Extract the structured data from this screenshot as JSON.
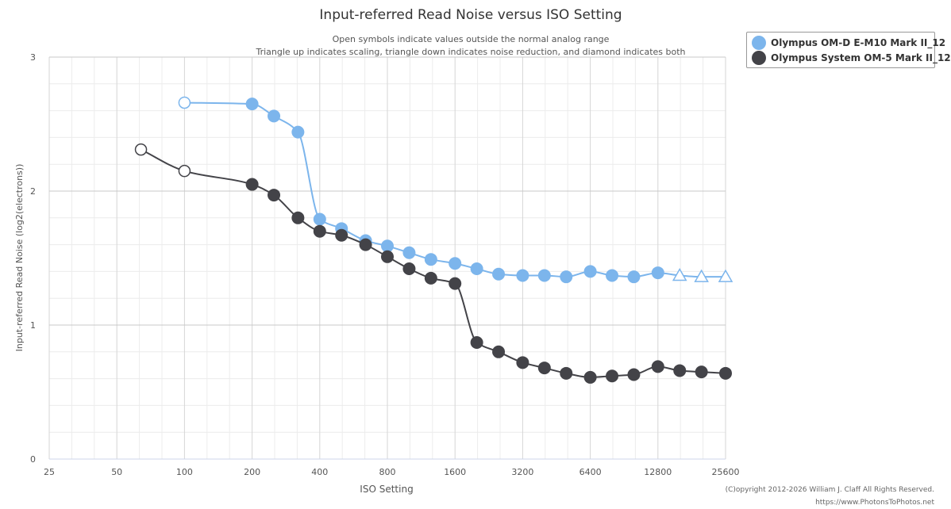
{
  "chart_data": {
    "type": "line",
    "title": "Input-referred Read Noise versus ISO Setting",
    "subtitle_lines": [
      "Open symbols indicate values outside the normal analog range",
      "Triangle up indicates scaling, triangle down indicates noise reduction, and diamond indicates both"
    ],
    "xlabel": "ISO Setting",
    "ylabel": "Input-referred Read Noise (log2(electrons))",
    "x_scale": "log2",
    "xlim": [
      25,
      25600
    ],
    "ylim": [
      0,
      3
    ],
    "x_ticks": [
      25,
      50,
      100,
      200,
      400,
      800,
      1600,
      3200,
      6400,
      12800,
      25600
    ],
    "y_ticks": [
      0,
      1,
      2,
      3
    ],
    "grid": true,
    "legend_position": "top-right",
    "series": [
      {
        "name": "Olympus OM-D E-M10 Mark II_12",
        "color": "#7cb5ec",
        "points": [
          {
            "x": 100,
            "y": 2.66,
            "marker": "open-circle"
          },
          {
            "x": 200,
            "y": 2.65,
            "marker": "circle"
          },
          {
            "x": 250,
            "y": 2.56,
            "marker": "circle"
          },
          {
            "x": 320,
            "y": 2.44,
            "marker": "circle"
          },
          {
            "x": 400,
            "y": 1.79,
            "marker": "circle"
          },
          {
            "x": 500,
            "y": 1.72,
            "marker": "circle"
          },
          {
            "x": 640,
            "y": 1.63,
            "marker": "circle"
          },
          {
            "x": 800,
            "y": 1.59,
            "marker": "circle"
          },
          {
            "x": 1000,
            "y": 1.54,
            "marker": "circle"
          },
          {
            "x": 1250,
            "y": 1.49,
            "marker": "circle"
          },
          {
            "x": 1600,
            "y": 1.46,
            "marker": "circle"
          },
          {
            "x": 2000,
            "y": 1.42,
            "marker": "circle"
          },
          {
            "x": 2500,
            "y": 1.38,
            "marker": "circle"
          },
          {
            "x": 3200,
            "y": 1.37,
            "marker": "circle"
          },
          {
            "x": 4000,
            "y": 1.37,
            "marker": "circle"
          },
          {
            "x": 5000,
            "y": 1.36,
            "marker": "circle"
          },
          {
            "x": 6400,
            "y": 1.4,
            "marker": "circle"
          },
          {
            "x": 8000,
            "y": 1.37,
            "marker": "circle"
          },
          {
            "x": 10000,
            "y": 1.36,
            "marker": "circle"
          },
          {
            "x": 12800,
            "y": 1.39,
            "marker": "circle"
          },
          {
            "x": 16000,
            "y": 1.37,
            "marker": "open-triangle-up"
          },
          {
            "x": 20000,
            "y": 1.36,
            "marker": "open-triangle-up"
          },
          {
            "x": 25600,
            "y": 1.36,
            "marker": "open-triangle-up"
          }
        ]
      },
      {
        "name": "Olympus System OM-5 Mark II_12",
        "color": "#434348",
        "points": [
          {
            "x": 64,
            "y": 2.31,
            "marker": "open-circle"
          },
          {
            "x": 100,
            "y": 2.15,
            "marker": "open-circle"
          },
          {
            "x": 200,
            "y": 2.05,
            "marker": "circle"
          },
          {
            "x": 250,
            "y": 1.97,
            "marker": "circle"
          },
          {
            "x": 320,
            "y": 1.8,
            "marker": "circle"
          },
          {
            "x": 400,
            "y": 1.7,
            "marker": "circle"
          },
          {
            "x": 500,
            "y": 1.67,
            "marker": "circle"
          },
          {
            "x": 640,
            "y": 1.6,
            "marker": "circle"
          },
          {
            "x": 800,
            "y": 1.51,
            "marker": "circle"
          },
          {
            "x": 1000,
            "y": 1.42,
            "marker": "circle"
          },
          {
            "x": 1250,
            "y": 1.35,
            "marker": "circle"
          },
          {
            "x": 1600,
            "y": 1.31,
            "marker": "circle"
          },
          {
            "x": 2000,
            "y": 0.87,
            "marker": "circle"
          },
          {
            "x": 2500,
            "y": 0.8,
            "marker": "circle"
          },
          {
            "x": 3200,
            "y": 0.72,
            "marker": "circle"
          },
          {
            "x": 4000,
            "y": 0.68,
            "marker": "circle"
          },
          {
            "x": 5000,
            "y": 0.64,
            "marker": "circle"
          },
          {
            "x": 6400,
            "y": 0.61,
            "marker": "circle"
          },
          {
            "x": 8000,
            "y": 0.62,
            "marker": "circle"
          },
          {
            "x": 10000,
            "y": 0.63,
            "marker": "circle"
          },
          {
            "x": 12800,
            "y": 0.69,
            "marker": "circle"
          },
          {
            "x": 16000,
            "y": 0.66,
            "marker": "circle"
          },
          {
            "x": 20000,
            "y": 0.65,
            "marker": "circle"
          },
          {
            "x": 25600,
            "y": 0.64,
            "marker": "circle"
          }
        ]
      }
    ]
  },
  "copyright": {
    "line1": "(C)opyright 2012-2026 William J. Claff All Rights Reserved.",
    "line2": "https://www.PhotonsToPhotos.net"
  }
}
